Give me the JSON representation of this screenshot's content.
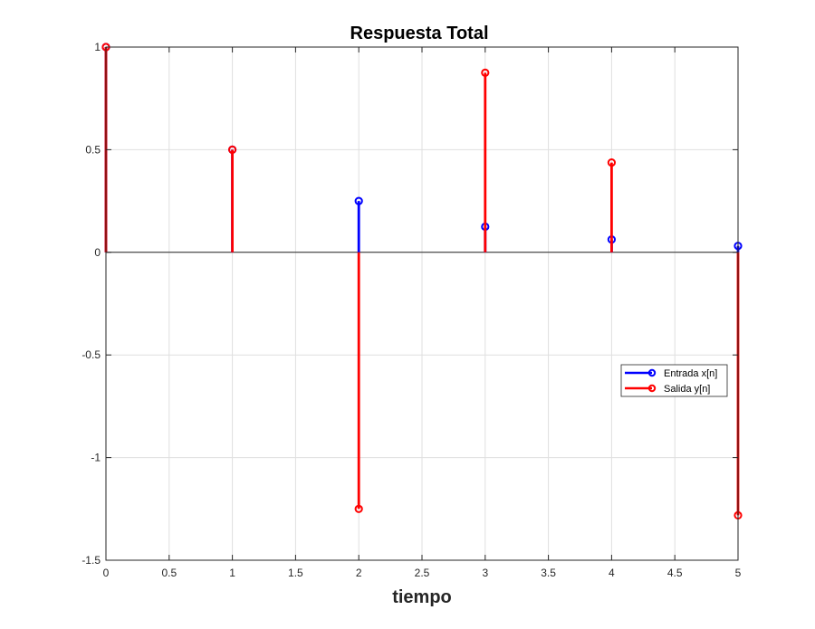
{
  "chart_data": {
    "type": "stem",
    "title": "Respuesta Total",
    "xlabel": "tiempo",
    "ylabel": "",
    "xlim": [
      0,
      5
    ],
    "ylim": [
      -1.5,
      1
    ],
    "xticks": [
      "0",
      "0.5",
      "1",
      "1.5",
      "2",
      "2.5",
      "3",
      "3.5",
      "4",
      "4.5",
      "5"
    ],
    "yticks": [
      "-1.5",
      "-1",
      "-0.5",
      "0",
      "0.5",
      "1"
    ],
    "xtick_values": [
      0,
      0.5,
      1,
      1.5,
      2,
      2.5,
      3,
      3.5,
      4,
      4.5,
      5
    ],
    "ytick_values": [
      -1.5,
      -1,
      -0.5,
      0,
      0.5,
      1
    ],
    "grid": true,
    "legend_position": "right-middle",
    "series": [
      {
        "name": "Entrada x[n]",
        "color": "#0000ff",
        "x": [
          0,
          1,
          2,
          3,
          4,
          5
        ],
        "y": [
          1,
          0.5,
          0.25,
          0.125,
          0.0625,
          0.03125
        ]
      },
      {
        "name": "Salida y[n]",
        "color": "#ff0000",
        "x": [
          0,
          1,
          2,
          3,
          4,
          5
        ],
        "y": [
          1,
          0.5,
          -1.25,
          0.875,
          0.4375,
          -1.28125
        ]
      }
    ]
  }
}
